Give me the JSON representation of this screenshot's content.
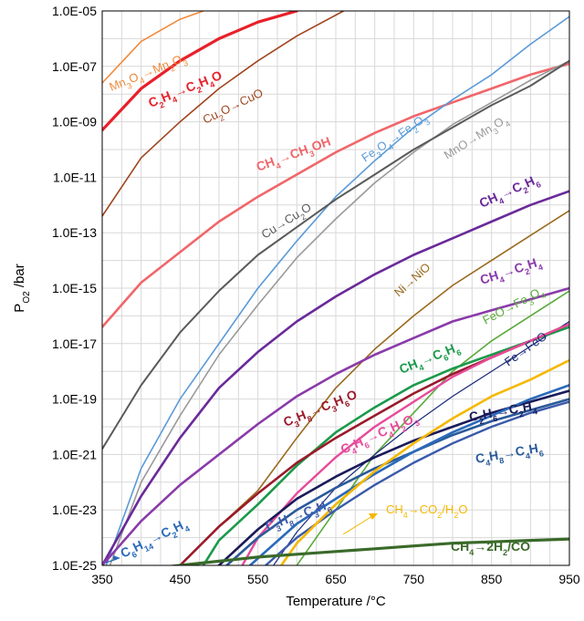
{
  "chart_data": {
    "type": "line",
    "title": "",
    "xlabel": "Temperature /°C",
    "ylabel_main": "P",
    "ylabel_sub": "O2",
    "ylabel_rest": " /bar",
    "xlim": [
      350,
      950
    ],
    "ylim_log10": [
      -25,
      -5
    ],
    "y_scale": "log",
    "grid": true,
    "x_ticks": [
      350,
      450,
      550,
      650,
      750,
      850,
      950
    ],
    "x_tick_labels": [
      "350",
      "450",
      "550",
      "650",
      "750",
      "850",
      "950"
    ],
    "y_ticks_log10": [
      -25,
      -23,
      -21,
      -19,
      -17,
      -15,
      -13,
      -11,
      -9,
      -7,
      -5
    ],
    "y_tick_labels": [
      "1.0E-25",
      "1.0E-23",
      "1.0E-21",
      "1.0E-19",
      "1.0E-17",
      "1.0E-15",
      "1.0E-13",
      "1.0E-11",
      "1.0E-09",
      "1.0E-07",
      "1.0E-05"
    ],
    "series": [
      {
        "name": "Mn3O4→Mn2O3",
        "label_parts": [
          [
            "Mn",
            ""
          ],
          [
            "3",
            "sub"
          ],
          [
            "O",
            ""
          ],
          [
            "4",
            "sub"
          ],
          [
            "→Mn",
            ""
          ],
          [
            "2",
            "sub"
          ],
          [
            "O",
            ""
          ],
          [
            "3",
            "sub"
          ]
        ],
        "color": "#f08a3c",
        "width": 1.6,
        "bold": false,
        "x": [
          350,
          400,
          450,
          480
        ],
        "y_log10": [
          -7.6,
          -6.1,
          -5.3,
          -5.0
        ]
      },
      {
        "name": "C2H4→C2H4O",
        "label_parts": [
          [
            "C",
            ""
          ],
          [
            "2",
            "sub"
          ],
          [
            "H",
            ""
          ],
          [
            "4",
            "sub"
          ],
          [
            "→C",
            ""
          ],
          [
            "2",
            "sub"
          ],
          [
            "H",
            ""
          ],
          [
            "4",
            "sub"
          ],
          [
            "O",
            ""
          ]
        ],
        "color": "#e8202a",
        "width": 3.2,
        "bold": true,
        "x": [
          350,
          400,
          450,
          500,
          550,
          600
        ],
        "y_log10": [
          -9.3,
          -7.8,
          -6.8,
          -6.0,
          -5.4,
          -5.0
        ]
      },
      {
        "name": "Cu2O→CuO",
        "label_parts": [
          [
            "Cu",
            ""
          ],
          [
            "2",
            "sub"
          ],
          [
            "O→CuO",
            ""
          ]
        ],
        "color": "#a0451e",
        "width": 1.6,
        "bold": false,
        "x": [
          350,
          400,
          450,
          500,
          550,
          600,
          660
        ],
        "y_log10": [
          -12.4,
          -10.3,
          -9.0,
          -7.8,
          -6.8,
          -5.9,
          -5.0
        ]
      },
      {
        "name": "CH4→CH3OH",
        "label_parts": [
          [
            "CH",
            ""
          ],
          [
            "4",
            "sub"
          ],
          [
            "→CH",
            ""
          ],
          [
            "3",
            "sub"
          ],
          [
            "OH",
            ""
          ]
        ],
        "color": "#f0666a",
        "width": 2.6,
        "bold": true,
        "x": [
          350,
          400,
          450,
          500,
          550,
          600,
          650,
          700,
          750,
          800,
          850,
          900,
          950
        ],
        "y_log10": [
          -16.4,
          -14.8,
          -13.7,
          -12.6,
          -11.7,
          -10.9,
          -10.1,
          -9.4,
          -8.8,
          -8.3,
          -7.8,
          -7.3,
          -6.9
        ]
      },
      {
        "name": "Fe3O4→Fe2O3",
        "label_parts": [
          [
            "Fe",
            ""
          ],
          [
            "3",
            "sub"
          ],
          [
            "O",
            ""
          ],
          [
            "4",
            "sub"
          ],
          [
            "→Fe",
            ""
          ],
          [
            "2",
            "sub"
          ],
          [
            "O",
            ""
          ],
          [
            "3",
            "sub"
          ]
        ],
        "color": "#5a9ad8",
        "width": 1.6,
        "bold": false,
        "x": [
          355,
          400,
          450,
          500,
          550,
          600,
          650,
          700,
          750,
          800,
          850,
          900,
          950
        ],
        "y_log10": [
          -25.0,
          -21.5,
          -19.0,
          -17.0,
          -15.0,
          -13.3,
          -11.7,
          -10.4,
          -9.2,
          -8.2,
          -7.3,
          -6.2,
          -5.2
        ]
      },
      {
        "name": "MnO→Mn3O4",
        "label_parts": [
          [
            "MnO→Mn",
            ""
          ],
          [
            "3",
            "sub"
          ],
          [
            "O",
            ""
          ],
          [
            "4",
            "sub"
          ]
        ],
        "color": "#9a9a9a",
        "width": 1.6,
        "bold": false,
        "x": [
          360,
          400,
          450,
          500,
          550,
          600,
          650,
          700,
          750,
          800,
          850,
          900,
          950
        ],
        "y_log10": [
          -25.0,
          -22.0,
          -19.6,
          -17.4,
          -15.6,
          -13.9,
          -12.5,
          -11.2,
          -10.1,
          -9.1,
          -8.3,
          -7.5,
          -6.8
        ]
      },
      {
        "name": "Cu→Cu2O",
        "label_parts": [
          [
            "Cu→Cu",
            ""
          ],
          [
            "2",
            "sub"
          ],
          [
            "O",
            ""
          ]
        ],
        "color": "#5a5a5a",
        "width": 2.0,
        "bold": false,
        "x": [
          350,
          400,
          450,
          500,
          550,
          600,
          650,
          700,
          750,
          800,
          850,
          900,
          950
        ],
        "y_log10": [
          -20.8,
          -18.5,
          -16.6,
          -15.1,
          -13.8,
          -12.8,
          -11.8,
          -10.9,
          -10.0,
          -9.2,
          -8.4,
          -7.7,
          -6.8
        ]
      },
      {
        "name": "CH4→C2H6",
        "label_parts": [
          [
            "CH",
            ""
          ],
          [
            "4",
            "sub"
          ],
          [
            "→C",
            ""
          ],
          [
            "2",
            "sub"
          ],
          [
            "H",
            ""
          ],
          [
            "6",
            "sub"
          ]
        ],
        "color": "#6a2a9a",
        "width": 2.6,
        "bold": true,
        "x": [
          350,
          400,
          450,
          500,
          550,
          600,
          650,
          700,
          750,
          800,
          850,
          900,
          950
        ],
        "y_log10": [
          -25.0,
          -22.5,
          -20.4,
          -18.6,
          -17.3,
          -16.2,
          -15.3,
          -14.5,
          -13.8,
          -13.2,
          -12.6,
          -12.0,
          -11.5
        ]
      },
      {
        "name": "Ni→NiO",
        "label_parts": [
          [
            "Ni→NiO",
            ""
          ]
        ],
        "color": "#9a6a1e",
        "width": 1.6,
        "bold": false,
        "x": [
          450,
          500,
          550,
          600,
          650,
          700,
          750,
          800,
          850,
          900,
          950
        ],
        "y_log10": [
          -25.0,
          -23.6,
          -22.3,
          -20.4,
          -18.6,
          -17.2,
          -16.0,
          -14.9,
          -14.0,
          -13.1,
          -12.2
        ]
      },
      {
        "name": "CH4→C2H4",
        "label_parts": [
          [
            "CH",
            ""
          ],
          [
            "4",
            "sub"
          ],
          [
            "→C",
            ""
          ],
          [
            "2",
            "sub"
          ],
          [
            "H",
            ""
          ],
          [
            "4",
            "sub"
          ]
        ],
        "color": "#8a3aaa",
        "width": 2.6,
        "bold": true,
        "x": [
          350,
          400,
          450,
          500,
          550,
          600,
          650,
          700,
          750,
          800,
          850,
          900,
          950
        ],
        "y_log10": [
          -25.0,
          -23.4,
          -22.1,
          -21.0,
          -19.9,
          -18.9,
          -18.1,
          -17.4,
          -16.8,
          -16.2,
          -15.8,
          -15.4,
          -15.0
        ]
      },
      {
        "name": "FeO→Fe3O4",
        "label_parts": [
          [
            "FeO→Fe",
            ""
          ],
          [
            "3",
            "sub"
          ],
          [
            "O",
            ""
          ],
          [
            "4",
            "sub"
          ]
        ],
        "color": "#5aaa3c",
        "width": 1.6,
        "bold": false,
        "x": [
          600,
          650,
          700,
          750,
          800,
          850,
          900,
          950
        ],
        "y_log10": [
          -25.0,
          -23.0,
          -21.0,
          -19.5,
          -18.0,
          -16.9,
          -16.0,
          -15.1
        ]
      },
      {
        "name": "Fe→FeO",
        "label_parts": [
          [
            "Fe→FeO",
            ""
          ]
        ],
        "color": "#1a2a7a",
        "width": 1.2,
        "bold": false,
        "x": [
          570,
          600,
          650,
          700,
          750,
          800,
          850,
          900,
          950
        ],
        "y_log10": [
          -25.0,
          -23.8,
          -22.2,
          -21.0,
          -19.9,
          -18.9,
          -18.0,
          -17.1,
          -16.2
        ]
      },
      {
        "name": "CH4→C6H6",
        "label_parts": [
          [
            "CH",
            ""
          ],
          [
            "4",
            "sub"
          ],
          [
            "→C",
            ""
          ],
          [
            "6",
            "sub"
          ],
          [
            "H",
            ""
          ],
          [
            "6",
            "sub"
          ]
        ],
        "color": "#1a9a4a",
        "width": 2.6,
        "bold": true,
        "x": [
          480,
          500,
          550,
          600,
          650,
          700,
          750,
          800,
          850,
          900,
          950
        ],
        "y_log10": [
          -25.0,
          -24.1,
          -22.8,
          -21.4,
          -20.2,
          -19.3,
          -18.5,
          -17.9,
          -17.4,
          -16.9,
          -16.4
        ]
      },
      {
        "name": "C3H8→C3H6O",
        "label_parts": [
          [
            "C",
            ""
          ],
          [
            "3",
            "sub"
          ],
          [
            "H",
            ""
          ],
          [
            "8",
            "sub"
          ],
          [
            "→C",
            ""
          ],
          [
            "3",
            "sub"
          ],
          [
            "H",
            ""
          ],
          [
            "6",
            "sub"
          ],
          [
            "O",
            ""
          ]
        ],
        "color": "#9a1a2a",
        "width": 2.6,
        "bold": true,
        "x": [
          450,
          500,
          550,
          600,
          650,
          700,
          750,
          800,
          850,
          900,
          950
        ],
        "y_log10": [
          -25.0,
          -23.6,
          -22.4,
          -21.3,
          -20.4,
          -19.6,
          -18.8,
          -18.1,
          -17.5,
          -16.9,
          -16.3
        ]
      },
      {
        "name": "C4H6→C4H2O3",
        "label_parts": [
          [
            "C",
            ""
          ],
          [
            "4",
            "sub"
          ],
          [
            "H",
            ""
          ],
          [
            "6",
            "sub"
          ],
          [
            "→C",
            ""
          ],
          [
            "4",
            "sub"
          ],
          [
            "H",
            ""
          ],
          [
            "2",
            "sub"
          ],
          [
            "O",
            ""
          ],
          [
            "3",
            "sub"
          ]
        ],
        "color": "#e84a9a",
        "width": 2.4,
        "bold": true,
        "x": [
          530,
          550,
          600,
          650,
          700,
          750,
          800,
          850,
          900,
          950
        ],
        "y_log10": [
          -25.0,
          -24.0,
          -22.4,
          -21.1,
          -20.0,
          -19.1,
          -18.2,
          -17.5,
          -16.9,
          -16.3
        ]
      },
      {
        "name": "C2H6→C2H4",
        "label_parts": [
          [
            "C",
            ""
          ],
          [
            "2",
            "sub"
          ],
          [
            "H",
            ""
          ],
          [
            "6",
            "sub"
          ],
          [
            "→C",
            ""
          ],
          [
            "2",
            "sub"
          ],
          [
            "H",
            ""
          ],
          [
            "4",
            "sub"
          ]
        ],
        "color": "#1a1a5a",
        "width": 2.6,
        "bold": true,
        "x": [
          500,
          550,
          600,
          650,
          700,
          750,
          800,
          850,
          900,
          950
        ],
        "y_log10": [
          -25.0,
          -23.7,
          -22.6,
          -21.8,
          -21.1,
          -20.5,
          -20.0,
          -19.5,
          -19.1,
          -18.7
        ]
      },
      {
        "name": "C4H8→C4H6",
        "label_parts": [
          [
            "C",
            ""
          ],
          [
            "4",
            "sub"
          ],
          [
            "H",
            ""
          ],
          [
            "8",
            "sub"
          ],
          [
            "→C",
            ""
          ],
          [
            "4",
            "sub"
          ],
          [
            "H",
            ""
          ],
          [
            "6",
            "sub"
          ]
        ],
        "color": "#2a5a9a",
        "width": 2.6,
        "bold": true,
        "x": [
          510,
          550,
          600,
          650,
          700,
          750,
          800,
          850,
          900,
          950
        ],
        "y_log10": [
          -25.0,
          -24.0,
          -23.0,
          -22.2,
          -21.5,
          -20.9,
          -20.3,
          -19.8,
          -19.4,
          -19.0
        ]
      },
      {
        "name": "C6H14→C2H4",
        "label_parts": [
          [
            "C",
            ""
          ],
          [
            "6",
            "sub"
          ],
          [
            "H",
            ""
          ],
          [
            "14",
            "sub"
          ],
          [
            "→C",
            ""
          ],
          [
            "2",
            "sub"
          ],
          [
            "H",
            ""
          ],
          [
            "4",
            "sub"
          ]
        ],
        "color": "#2a6aba",
        "width": 2.6,
        "bold": true,
        "x": [
          540,
          600,
          650,
          700,
          750,
          800,
          850,
          900,
          950
        ],
        "y_log10": [
          -25.0,
          -23.5,
          -22.6,
          -21.7,
          -20.9,
          -20.2,
          -19.6,
          -19.0,
          -18.5
        ]
      },
      {
        "name": "C3H8→C3H6",
        "label_parts": [
          [
            "C",
            ""
          ],
          [
            "3",
            "sub"
          ],
          [
            "H",
            ""
          ],
          [
            "8",
            "sub"
          ],
          [
            "→C",
            ""
          ],
          [
            "3",
            "sub"
          ],
          [
            "H",
            ""
          ],
          [
            "6",
            "sub"
          ]
        ],
        "color": "#3a5aaa",
        "width": 2.4,
        "bold": true,
        "x": [
          560,
          600,
          650,
          700,
          750,
          800,
          850,
          900,
          950
        ],
        "y_log10": [
          -25.0,
          -24.0,
          -23.0,
          -22.1,
          -21.3,
          -20.6,
          -20.0,
          -19.5,
          -19.1
        ]
      },
      {
        "name": "CH4→CO2/H2O",
        "label_parts": [
          [
            "CH",
            ""
          ],
          [
            "4",
            "sub"
          ],
          [
            "→CO",
            ""
          ],
          [
            "2",
            "sub"
          ],
          [
            "/H",
            ""
          ],
          [
            "2",
            "sub"
          ],
          [
            "O",
            ""
          ]
        ],
        "color": "#f5b800",
        "width": 2.6,
        "bold": false,
        "x": [
          580,
          600,
          650,
          700,
          750,
          800,
          850,
          900,
          950
        ],
        "y_log10": [
          -25.0,
          -24.2,
          -22.8,
          -21.6,
          -20.6,
          -19.7,
          -18.9,
          -18.3,
          -17.6
        ]
      },
      {
        "name": "CH4→2H2/CO",
        "label_parts": [
          [
            "CH",
            ""
          ],
          [
            "4",
            "sub"
          ],
          [
            "→2H",
            ""
          ],
          [
            "2",
            "sub"
          ],
          [
            "/CO",
            ""
          ]
        ],
        "color": "#3a6a2a",
        "width": 3.2,
        "bold": true,
        "x": [
          350,
          400,
          450,
          500,
          550,
          600,
          650,
          700,
          750,
          800,
          850,
          900,
          950
        ],
        "y_log10": [
          -25.3,
          -25.15,
          -25.0,
          -24.85,
          -24.7,
          -24.6,
          -24.5,
          -24.4,
          -24.3,
          -24.2,
          -24.15,
          -24.1,
          -24.05
        ]
      }
    ]
  }
}
